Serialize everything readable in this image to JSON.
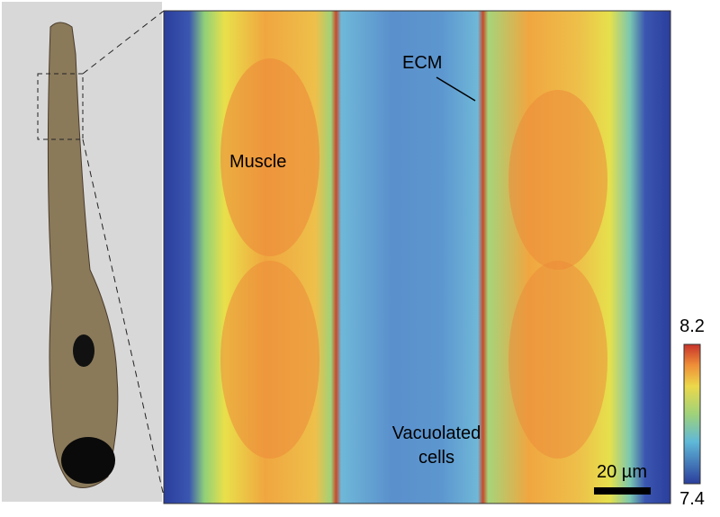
{
  "figure": {
    "labels": {
      "ecm": "ECM",
      "muscle": "Muscle",
      "vacuolated_cells": [
        "Vacuolated",
        "cells"
      ]
    },
    "scale_bar": "20 µm",
    "colorbar": {
      "max": 8.2,
      "min": 7.4
    }
  }
}
